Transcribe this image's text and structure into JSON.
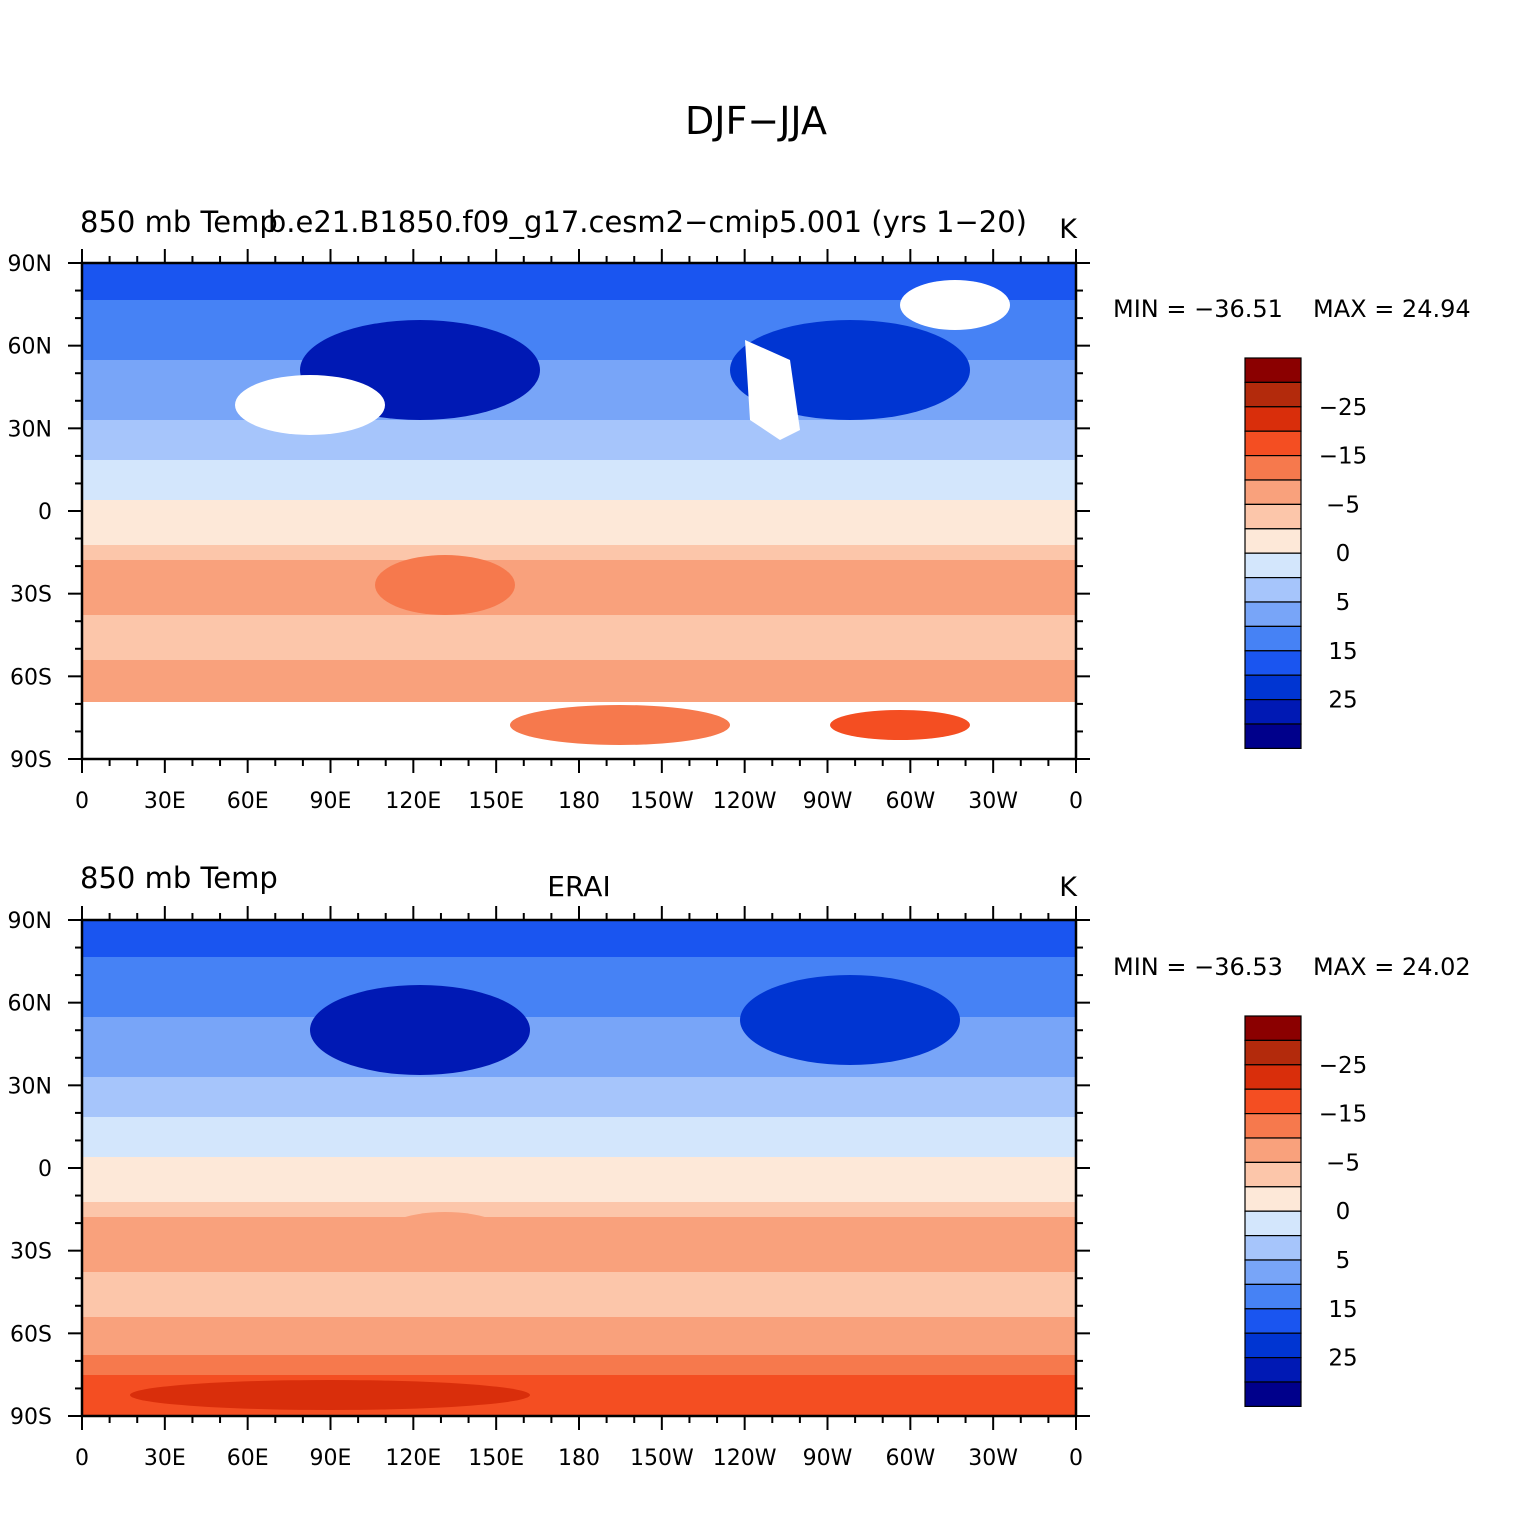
{
  "figure": {
    "title": "DJF−JJA"
  },
  "legend": {
    "levels": [
      -35,
      -30,
      -25,
      -20,
      -15,
      -10,
      -5,
      -2,
      0,
      2,
      5,
      10,
      15,
      20,
      25,
      30
    ],
    "labels": [
      "−25",
      "−15",
      "−5",
      "0",
      "5",
      "15",
      "25"
    ],
    "colors": [
      "#00008b",
      "#0019b4",
      "#0035d2",
      "#1a55f0",
      "#4682f5",
      "#78a5f8",
      "#a6c5fb",
      "#d3e6fc",
      "#fde8d8",
      "#fcc6aa",
      "#f9a17c",
      "#f6794d",
      "#f44e22",
      "#d92e0b",
      "#b32a0c",
      "#8b0000"
    ]
  },
  "axes": {
    "lat_labels": [
      "90N",
      "60N",
      "30N",
      "0",
      "30S",
      "60S",
      "90S"
    ],
    "lon_labels": [
      "0",
      "30E",
      "60E",
      "90E",
      "120E",
      "150E",
      "180",
      "150W",
      "120W",
      "90W",
      "60W",
      "30W",
      "0"
    ]
  },
  "chart_data": [
    {
      "type": "heatmap",
      "title": "b.e21.B1850.f09_g17.cesm2−cmip5.001 (yrs 1−20)",
      "left_label": "850 mb Temp",
      "units": "K",
      "min_label": "MIN = −36.51",
      "max_label": "MAX =   24.94",
      "min": -36.51,
      "max": 24.94,
      "x_label": "",
      "y_label": "",
      "xlim": [
        0,
        360
      ],
      "ylim": [
        -90,
        90
      ],
      "grid": false
    },
    {
      "type": "heatmap",
      "title": "ERAI",
      "left_label": "850 mb Temp",
      "units": "K",
      "min_label": "MIN = −36.53",
      "max_label": "MAX =   24.02",
      "min": -36.53,
      "max": 24.02,
      "x_label": "",
      "y_label": "",
      "xlim": [
        0,
        360
      ],
      "ylim": [
        -90,
        90
      ],
      "grid": false
    }
  ]
}
